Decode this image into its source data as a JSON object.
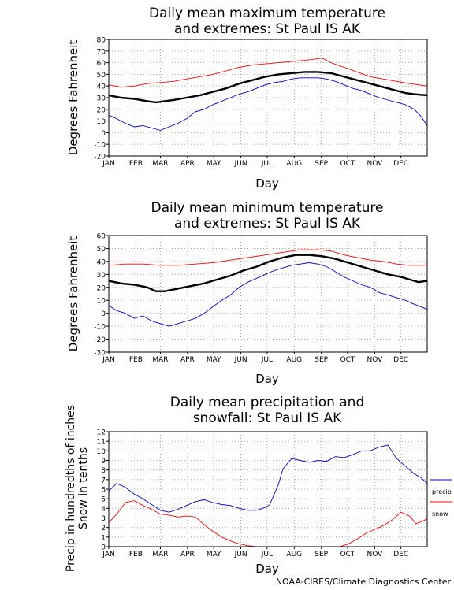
{
  "credit": "NOAA-CIRES/Climate Diagnostics Center",
  "chart_data": [
    {
      "type": "line",
      "title": [
        "Daily mean maximum temperature",
        "and extremes: St Paul IS AK"
      ],
      "xlabel": "Day",
      "ylabel": [
        "Degrees Fahrenheit"
      ],
      "months": [
        "JAN",
        "FEB",
        "MAR",
        "APR",
        "MAY",
        "JUN",
        "JUL",
        "AUG",
        "SEP",
        "OCT",
        "NOV",
        "DEC"
      ],
      "yticks": [
        -20,
        -10,
        0,
        10,
        20,
        30,
        40,
        50,
        60,
        70,
        80
      ],
      "ylim": [
        -20,
        80
      ],
      "xlim": [
        1,
        365
      ],
      "grid": true,
      "series": [
        {
          "color": "#ff0000",
          "points": [
            [
              1,
              41
            ],
            [
              15,
              39
            ],
            [
              30,
              40
            ],
            [
              45,
              42
            ],
            [
              60,
              43
            ],
            [
              75,
              44
            ],
            [
              90,
              46
            ],
            [
              105,
              48
            ],
            [
              120,
              50
            ],
            [
              135,
              53
            ],
            [
              150,
              56
            ],
            [
              165,
              58
            ],
            [
              180,
              59
            ],
            [
              195,
              60
            ],
            [
              210,
              61
            ],
            [
              225,
              62
            ],
            [
              235,
              63
            ],
            [
              245,
              64
            ],
            [
              255,
              60
            ],
            [
              270,
              56
            ],
            [
              285,
              52
            ],
            [
              300,
              48
            ],
            [
              315,
              46
            ],
            [
              330,
              44
            ],
            [
              345,
              42
            ],
            [
              365,
              40
            ]
          ]
        },
        {
          "color": "#000000",
          "points": [
            [
              1,
              32
            ],
            [
              15,
              30
            ],
            [
              30,
              29
            ],
            [
              45,
              27
            ],
            [
              55,
              26
            ],
            [
              65,
              27
            ],
            [
              75,
              28
            ],
            [
              90,
              30
            ],
            [
              105,
              32
            ],
            [
              120,
              35
            ],
            [
              135,
              38
            ],
            [
              150,
              42
            ],
            [
              165,
              45
            ],
            [
              180,
              48
            ],
            [
              195,
              50
            ],
            [
              210,
              51
            ],
            [
              225,
              52
            ],
            [
              240,
              52
            ],
            [
              255,
              51
            ],
            [
              270,
              48
            ],
            [
              285,
              45
            ],
            [
              300,
              42
            ],
            [
              315,
              39
            ],
            [
              330,
              36
            ],
            [
              340,
              34
            ],
            [
              350,
              33
            ],
            [
              365,
              32
            ]
          ]
        },
        {
          "color": "#0000cc",
          "points": [
            [
              1,
              15
            ],
            [
              10,
              12
            ],
            [
              20,
              8
            ],
            [
              30,
              5
            ],
            [
              40,
              6
            ],
            [
              50,
              4
            ],
            [
              60,
              2
            ],
            [
              70,
              5
            ],
            [
              80,
              8
            ],
            [
              90,
              12
            ],
            [
              100,
              18
            ],
            [
              110,
              20
            ],
            [
              120,
              24
            ],
            [
              130,
              27
            ],
            [
              140,
              30
            ],
            [
              150,
              33
            ],
            [
              160,
              35
            ],
            [
              170,
              38
            ],
            [
              180,
              41
            ],
            [
              190,
              43
            ],
            [
              200,
              44
            ],
            [
              210,
              46
            ],
            [
              220,
              47
            ],
            [
              230,
              47
            ],
            [
              240,
              47
            ],
            [
              250,
              46
            ],
            [
              260,
              44
            ],
            [
              270,
              41
            ],
            [
              280,
              38
            ],
            [
              290,
              36
            ],
            [
              300,
              33
            ],
            [
              310,
              30
            ],
            [
              320,
              28
            ],
            [
              330,
              26
            ],
            [
              340,
              24
            ],
            [
              350,
              20
            ],
            [
              358,
              14
            ],
            [
              365,
              6
            ]
          ]
        }
      ]
    },
    {
      "type": "line",
      "title": [
        "Daily mean minimum temperature",
        "and extremes: St Paul IS AK"
      ],
      "xlabel": "Day",
      "ylabel": [
        "Degrees Fahrenheit"
      ],
      "months": [
        "JAN",
        "FEB",
        "MAR",
        "APR",
        "MAY",
        "JUN",
        "JUL",
        "AUG",
        "SEP",
        "OCT",
        "NOV",
        "DEC"
      ],
      "yticks": [
        -30,
        -20,
        -10,
        0,
        10,
        20,
        30,
        40,
        50,
        60
      ],
      "ylim": [
        -30,
        60
      ],
      "xlim": [
        1,
        365
      ],
      "grid": true,
      "series": [
        {
          "color": "#ff0000",
          "points": [
            [
              1,
              37
            ],
            [
              20,
              38
            ],
            [
              40,
              38
            ],
            [
              60,
              37
            ],
            [
              80,
              37
            ],
            [
              100,
              38
            ],
            [
              120,
              39
            ],
            [
              140,
              41
            ],
            [
              160,
              43
            ],
            [
              180,
              45
            ],
            [
              200,
              47
            ],
            [
              220,
              49
            ],
            [
              240,
              49
            ],
            [
              255,
              48
            ],
            [
              270,
              45
            ],
            [
              285,
              43
            ],
            [
              300,
              41
            ],
            [
              315,
              40
            ],
            [
              330,
              38
            ],
            [
              345,
              37
            ],
            [
              365,
              37
            ]
          ]
        },
        {
          "color": "#000000",
          "points": [
            [
              1,
              25
            ],
            [
              15,
              23
            ],
            [
              30,
              22
            ],
            [
              45,
              20
            ],
            [
              55,
              17
            ],
            [
              65,
              17
            ],
            [
              80,
              19
            ],
            [
              95,
              21
            ],
            [
              110,
              23
            ],
            [
              125,
              26
            ],
            [
              140,
              29
            ],
            [
              155,
              33
            ],
            [
              170,
              36
            ],
            [
              185,
              40
            ],
            [
              200,
              43
            ],
            [
              215,
              45
            ],
            [
              230,
              45
            ],
            [
              245,
              44
            ],
            [
              260,
              42
            ],
            [
              275,
              39
            ],
            [
              290,
              36
            ],
            [
              305,
              33
            ],
            [
              320,
              30
            ],
            [
              335,
              28
            ],
            [
              345,
              26
            ],
            [
              355,
              24
            ],
            [
              365,
              25
            ]
          ]
        },
        {
          "color": "#0000cc",
          "points": [
            [
              1,
              6
            ],
            [
              10,
              2
            ],
            [
              20,
              0
            ],
            [
              30,
              -4
            ],
            [
              40,
              -2
            ],
            [
              50,
              -6
            ],
            [
              60,
              -8
            ],
            [
              70,
              -10
            ],
            [
              80,
              -8
            ],
            [
              90,
              -6
            ],
            [
              100,
              -4
            ],
            [
              110,
              0
            ],
            [
              120,
              5
            ],
            [
              130,
              10
            ],
            [
              140,
              14
            ],
            [
              150,
              20
            ],
            [
              160,
              24
            ],
            [
              170,
              27
            ],
            [
              180,
              30
            ],
            [
              190,
              33
            ],
            [
              200,
              35
            ],
            [
              210,
              37
            ],
            [
              220,
              38
            ],
            [
              230,
              39
            ],
            [
              240,
              38
            ],
            [
              250,
              36
            ],
            [
              260,
              32
            ],
            [
              270,
              28
            ],
            [
              280,
              25
            ],
            [
              290,
              22
            ],
            [
              300,
              20
            ],
            [
              310,
              16
            ],
            [
              320,
              14
            ],
            [
              330,
              12
            ],
            [
              340,
              10
            ],
            [
              350,
              7
            ],
            [
              358,
              5
            ],
            [
              365,
              3
            ]
          ]
        }
      ]
    },
    {
      "type": "line",
      "title": [
        "Daily mean precipitation and",
        "snowfall: St Paul IS AK"
      ],
      "xlabel": "Day",
      "ylabel": [
        "Precip in hundredths of inches",
        "Snow in tenths"
      ],
      "months": [
        "JAN",
        "FEB",
        "MAR",
        "APR",
        "MAY",
        "JUN",
        "JUL",
        "AUG",
        "SEP",
        "OCT",
        "NOV",
        "DEC"
      ],
      "yticks": [
        0,
        1,
        2,
        3,
        4,
        5,
        6,
        7,
        8,
        9,
        10,
        11,
        12
      ],
      "ylim": [
        0,
        12
      ],
      "xlim": [
        1,
        365
      ],
      "grid": true,
      "series": [
        {
          "name": "precip",
          "color": "#0000cc",
          "points": [
            [
              1,
              5.8
            ],
            [
              10,
              6.6
            ],
            [
              20,
              6.2
            ],
            [
              30,
              5.5
            ],
            [
              40,
              5.0
            ],
            [
              50,
              4.4
            ],
            [
              60,
              3.8
            ],
            [
              70,
              3.6
            ],
            [
              80,
              3.9
            ],
            [
              90,
              4.3
            ],
            [
              100,
              4.7
            ],
            [
              110,
              4.9
            ],
            [
              120,
              4.6
            ],
            [
              130,
              4.4
            ],
            [
              140,
              4.3
            ],
            [
              150,
              4.0
            ],
            [
              160,
              3.8
            ],
            [
              170,
              3.8
            ],
            [
              180,
              4.1
            ],
            [
              185,
              4.4
            ],
            [
              195,
              6.5
            ],
            [
              200,
              8.1
            ],
            [
              210,
              9.2
            ],
            [
              220,
              9.0
            ],
            [
              230,
              8.8
            ],
            [
              240,
              9.0
            ],
            [
              250,
              8.9
            ],
            [
              260,
              9.4
            ],
            [
              270,
              9.3
            ],
            [
              280,
              9.6
            ],
            [
              290,
              10.0
            ],
            [
              300,
              10.0
            ],
            [
              310,
              10.4
            ],
            [
              320,
              10.6
            ],
            [
              330,
              9.2
            ],
            [
              340,
              8.4
            ],
            [
              350,
              7.6
            ],
            [
              358,
              7.2
            ],
            [
              365,
              6.6
            ]
          ]
        },
        {
          "name": "snow",
          "color": "#ff0000",
          "points": [
            [
              1,
              2.5
            ],
            [
              10,
              3.4
            ],
            [
              20,
              4.6
            ],
            [
              30,
              4.8
            ],
            [
              40,
              4.3
            ],
            [
              50,
              3.9
            ],
            [
              60,
              3.4
            ],
            [
              70,
              3.3
            ],
            [
              80,
              3.1
            ],
            [
              90,
              3.2
            ],
            [
              100,
              3.1
            ],
            [
              110,
              2.3
            ],
            [
              120,
              1.6
            ],
            [
              130,
              1.0
            ],
            [
              140,
              0.6
            ],
            [
              150,
              0.3
            ],
            [
              160,
              0.1
            ],
            [
              170,
              0.0
            ],
            [
              190,
              0.0
            ],
            [
              210,
              0.0
            ],
            [
              230,
              0.0
            ],
            [
              250,
              0.0
            ],
            [
              265,
              0.0
            ],
            [
              275,
              0.3
            ],
            [
              285,
              0.8
            ],
            [
              295,
              1.4
            ],
            [
              305,
              1.8
            ],
            [
              315,
              2.2
            ],
            [
              325,
              2.8
            ],
            [
              335,
              3.6
            ],
            [
              345,
              3.2
            ],
            [
              352,
              2.4
            ],
            [
              358,
              2.6
            ],
            [
              365,
              2.9
            ]
          ]
        }
      ]
    }
  ]
}
